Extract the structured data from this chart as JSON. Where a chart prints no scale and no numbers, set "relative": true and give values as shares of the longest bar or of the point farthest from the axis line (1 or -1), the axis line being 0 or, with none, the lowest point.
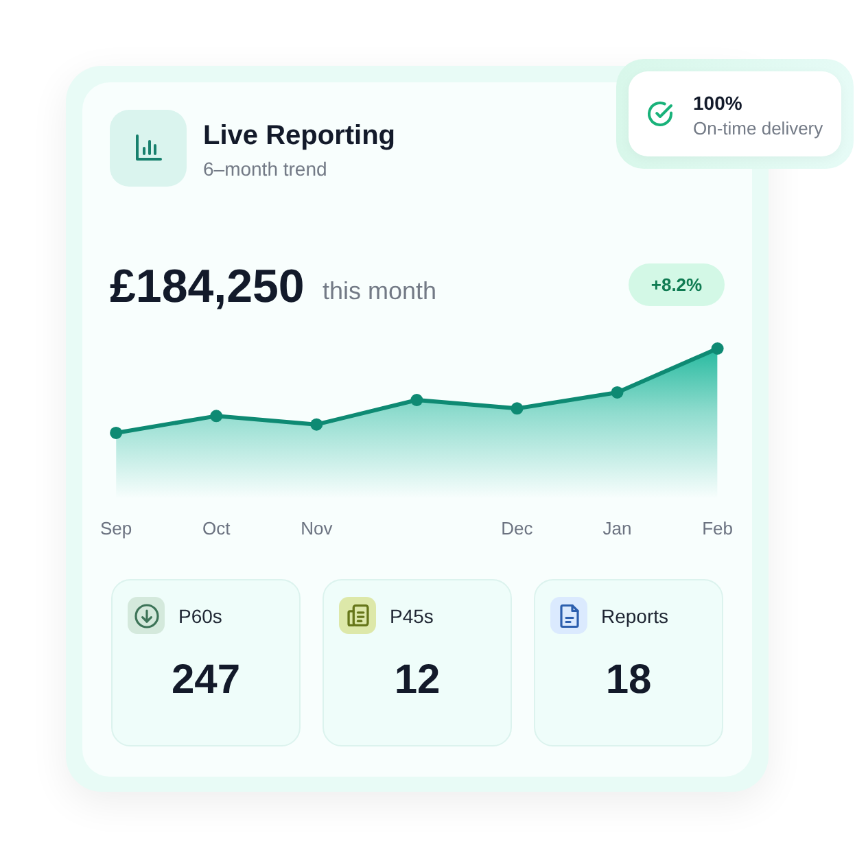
{
  "chart_data": {
    "type": "area",
    "title": "Live Reporting",
    "subtitle": "6–month trend",
    "categories": [
      "Sep",
      "Oct",
      "Nov",
      null,
      "Dec",
      "Jan",
      "Feb"
    ],
    "values": [
      0,
      0.2,
      0.1,
      0.39,
      0.29,
      0.48,
      1
    ],
    "color": "#0e8a73",
    "marker": "circle",
    "relative": true,
    "tick_labels": "x",
    "annotations": [
      "£184,250",
      "this month",
      "+8.2%",
      "100%",
      "On-time delivery",
      "P60s",
      "247",
      "P45s",
      "12",
      "Reports",
      "18"
    ]
  }
}
